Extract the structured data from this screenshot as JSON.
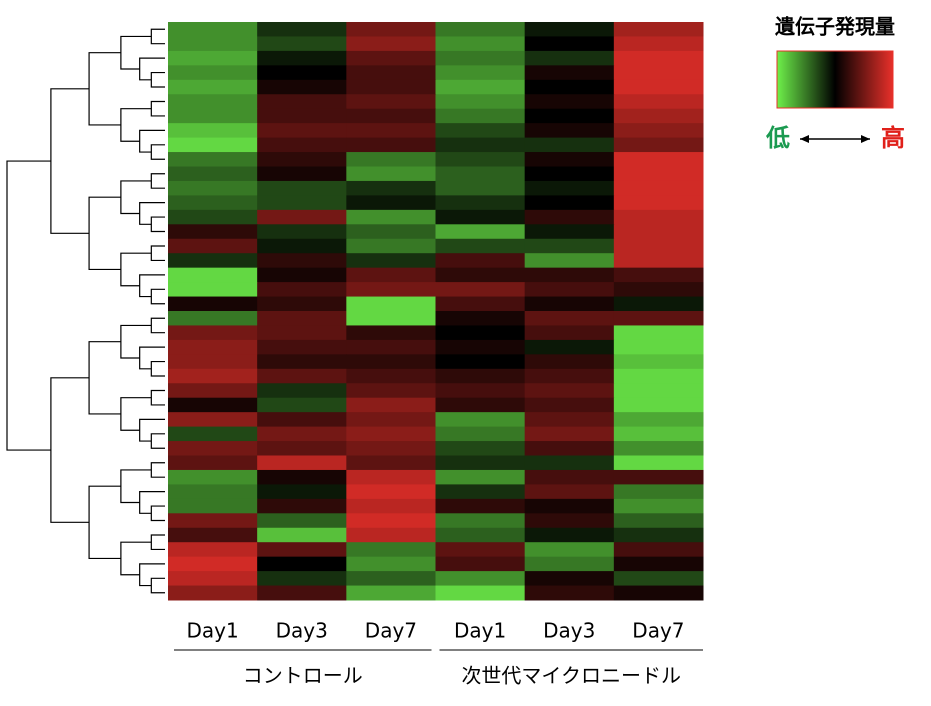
{
  "chart_data": {
    "type": "heatmap",
    "categories": [
      "Day1",
      "Day3",
      "Day7",
      "Day1",
      "Day3",
      "Day7"
    ],
    "groups": [
      "コントロール",
      "次世代マイクロニードル"
    ],
    "zlim": [
      -1,
      1
    ],
    "colors": {
      "low": "#6ef04a",
      "mid": "#000000",
      "high": "#e8302a"
    },
    "legend": {
      "title": "遺伝子発現量",
      "low_label": "低",
      "high_label": "高"
    },
    "values": [
      [
        -0.6,
        -0.2,
        0.5,
        -0.5,
        -0.1,
        0.7
      ],
      [
        -0.6,
        -0.3,
        0.6,
        -0.6,
        0,
        0.8
      ],
      [
        -0.7,
        -0.1,
        0.4,
        -0.5,
        -0.2,
        0.9
      ],
      [
        -0.6,
        0,
        0.3,
        -0.6,
        0.1,
        0.9
      ],
      [
        -0.7,
        0.1,
        0.3,
        -0.7,
        0,
        0.9
      ],
      [
        -0.6,
        0.3,
        0.4,
        -0.6,
        0.1,
        0.8
      ],
      [
        -0.6,
        0.3,
        0.3,
        -0.5,
        0,
        0.7
      ],
      [
        -0.8,
        0.4,
        0.4,
        -0.3,
        0.1,
        0.6
      ],
      [
        -0.9,
        0.3,
        0.3,
        -0.2,
        -0.2,
        0.5
      ],
      [
        -0.5,
        0.2,
        -0.5,
        -0.3,
        0.1,
        0.9
      ],
      [
        -0.4,
        0.1,
        -0.6,
        -0.4,
        0,
        0.9
      ],
      [
        -0.5,
        -0.3,
        -0.2,
        -0.4,
        -0.1,
        0.9
      ],
      [
        -0.4,
        -0.3,
        -0.1,
        -0.2,
        0,
        0.9
      ],
      [
        -0.3,
        0.5,
        -0.6,
        -0.1,
        0.2,
        0.8
      ],
      [
        0.2,
        -0.2,
        -0.4,
        -0.7,
        -0.1,
        0.8
      ],
      [
        0.4,
        -0.1,
        -0.5,
        -0.3,
        -0.3,
        0.8
      ],
      [
        -0.2,
        0.2,
        -0.2,
        0.3,
        -0.6,
        0.8
      ],
      [
        -0.9,
        0.1,
        0.4,
        0.2,
        0.2,
        0.3
      ],
      [
        -0.9,
        0.3,
        0.5,
        0.5,
        0.3,
        0.2
      ],
      [
        0.1,
        0.2,
        -0.9,
        0.3,
        0.1,
        -0.1
      ],
      [
        -0.5,
        0.4,
        -0.9,
        0.1,
        0.4,
        0.4
      ],
      [
        0.5,
        0.4,
        0.2,
        0,
        0.3,
        -0.9
      ],
      [
        0.6,
        0.3,
        0.3,
        0.1,
        -0.1,
        -0.9
      ],
      [
        0.6,
        0.2,
        0.2,
        0,
        0.2,
        -0.8
      ],
      [
        0.7,
        0.4,
        0.3,
        0.2,
        0.3,
        -0.9
      ],
      [
        0.5,
        -0.2,
        0.4,
        0.3,
        0.4,
        -0.9
      ],
      [
        0.1,
        -0.3,
        0.6,
        0.2,
        0.3,
        -0.9
      ],
      [
        0.6,
        0.3,
        0.5,
        -0.6,
        0.4,
        -0.7
      ],
      [
        -0.3,
        0.5,
        0.6,
        -0.5,
        0.5,
        -0.8
      ],
      [
        0.5,
        0.4,
        0.5,
        -0.3,
        0.3,
        -0.6
      ],
      [
        0.4,
        0.8,
        0.4,
        -0.2,
        -0.2,
        -0.9
      ],
      [
        -0.6,
        0.1,
        0.8,
        -0.6,
        0.3,
        0.3
      ],
      [
        -0.5,
        -0.1,
        0.9,
        -0.2,
        0.4,
        -0.5
      ],
      [
        -0.5,
        0.2,
        0.8,
        0.2,
        0.1,
        -0.6
      ],
      [
        0.5,
        -0.4,
        0.9,
        -0.5,
        0.2,
        -0.4
      ],
      [
        0.3,
        -0.8,
        0.8,
        -0.4,
        -0.1,
        -0.2
      ],
      [
        0.8,
        0.4,
        -0.5,
        0.4,
        -0.6,
        0.3
      ],
      [
        0.9,
        0,
        -0.6,
        0.3,
        -0.5,
        0.1
      ],
      [
        0.8,
        -0.2,
        -0.4,
        -0.6,
        0.1,
        -0.3
      ],
      [
        0.6,
        0.3,
        -0.7,
        -0.9,
        0.2,
        0.1
      ]
    ]
  }
}
